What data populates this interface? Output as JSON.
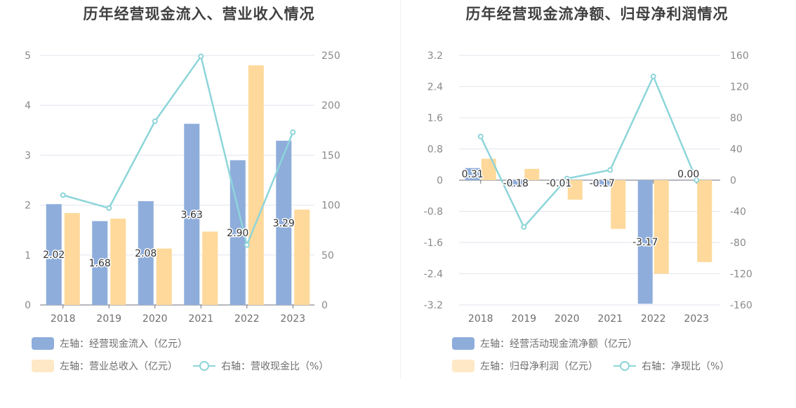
{
  "colors": {
    "bar_blue": "#8eaddb",
    "bar_orange": "#fed99b",
    "legend_orange": "#ffe8c6",
    "line_teal": "#8dd5d9",
    "grid": "#e3e6ef"
  },
  "chart_data": [
    {
      "type": "bar",
      "title": "历年经营现金流入、营业收入情况",
      "categories": [
        "2018",
        "2019",
        "2020",
        "2021",
        "2022",
        "2023"
      ],
      "left_axis": {
        "ylim": [
          0,
          5
        ],
        "ticks": [
          "0",
          "1",
          "2",
          "3",
          "4",
          "5"
        ]
      },
      "right_axis": {
        "ylim": [
          0,
          250
        ],
        "ticks": [
          "0",
          "50",
          "100",
          "150",
          "200",
          "250"
        ]
      },
      "series": [
        {
          "name": "左轴：经营现金流入（亿元）",
          "kind": "bar",
          "axis": "left",
          "color": "#8eaddb",
          "values": [
            2.02,
            1.68,
            2.08,
            3.63,
            2.9,
            3.29
          ],
          "labels": [
            "2.02",
            "1.68",
            "2.08",
            "3.63",
            "2.90",
            "3.29"
          ]
        },
        {
          "name": "左轴：营业总收入（亿元）",
          "kind": "bar",
          "axis": "left",
          "color": "#fed99b",
          "values": [
            1.84,
            1.73,
            1.13,
            1.47,
            4.8,
            1.91
          ]
        },
        {
          "name": "右轴：营收现金比（%）",
          "kind": "line",
          "axis": "right",
          "color": "#8dd5d9",
          "values": [
            110,
            97,
            184,
            249,
            60,
            173
          ]
        }
      ],
      "legend": [
        [
          "左轴：经营现金流入（亿元）"
        ],
        [
          "左轴：营业总收入（亿元）",
          "右轴：营收现金比（%）"
        ]
      ]
    },
    {
      "type": "bar",
      "title": "历年经营现金流净额、归母净利润情况",
      "categories": [
        "2018",
        "2019",
        "2020",
        "2021",
        "2022",
        "2023"
      ],
      "left_axis": {
        "ylim": [
          -3.2,
          3.2
        ],
        "ticks": [
          "-3.2",
          "-2.4",
          "-1.6",
          "-0.8",
          "0",
          "0.8",
          "1.6",
          "2.4",
          "3.2"
        ]
      },
      "right_axis": {
        "ylim": [
          -160,
          160
        ],
        "ticks": [
          "-160",
          "-120",
          "-80",
          "-40",
          "0",
          "40",
          "80",
          "120",
          "160"
        ]
      },
      "series": [
        {
          "name": "左轴：经营活动现金流净额（亿元）",
          "kind": "bar",
          "axis": "left",
          "color": "#8eaddb",
          "values": [
            0.31,
            -0.18,
            -0.01,
            -0.17,
            -3.17,
            0.0
          ],
          "labels": [
            "0.31",
            "-0.18",
            "-0.01",
            "-0.17",
            "-3.17",
            "0.00"
          ]
        },
        {
          "name": "左轴：归母净利润（亿元）",
          "kind": "bar",
          "axis": "left",
          "color": "#fed99b",
          "values": [
            0.55,
            0.29,
            -0.5,
            -1.25,
            -2.4,
            -2.1
          ]
        },
        {
          "name": "右轴：净现比（%）",
          "kind": "line",
          "axis": "right",
          "color": "#8dd5d9",
          "values": [
            56,
            -60,
            2,
            13,
            133,
            0
          ]
        }
      ],
      "legend": [
        [
          "左轴：经营活动现金流净额（亿元）"
        ],
        [
          "左轴：归母净利润（亿元）",
          "右轴：净现比（%）"
        ]
      ]
    }
  ]
}
